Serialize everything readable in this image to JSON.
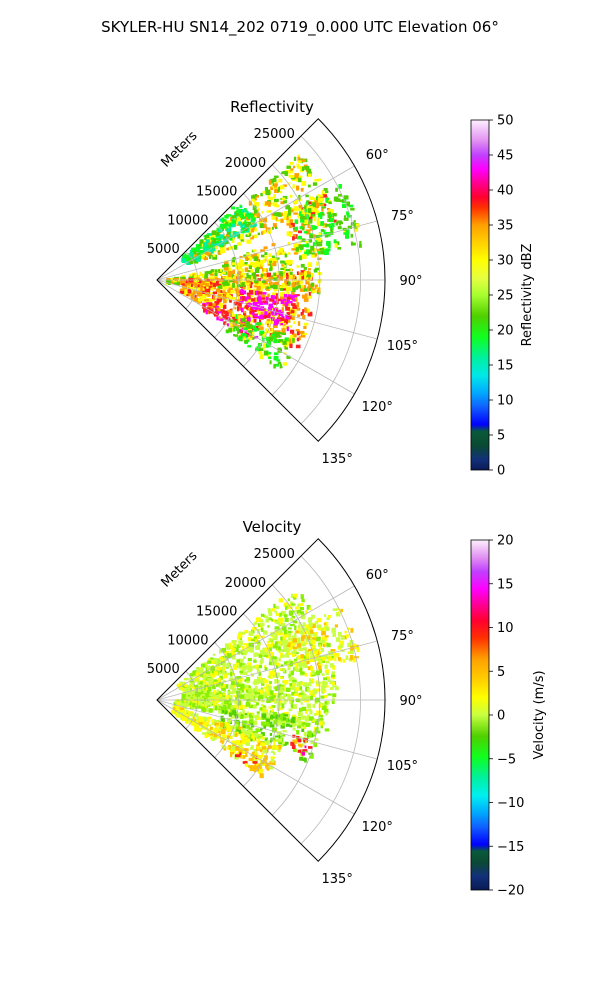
{
  "figure": {
    "title": "SKYLER-HU  SN14_202  0719_0.000 UTC Elevation 06°"
  },
  "chart_data": [
    {
      "type": "heatmap",
      "title": "Reflectivity",
      "range_label": "Meters",
      "range_ticks": [
        5000,
        10000,
        15000,
        20000,
        25000
      ],
      "range_tick_labels": [
        "5000",
        "10000",
        "15000",
        "20000",
        "25000"
      ],
      "range_max": 28000,
      "azimuth_range_deg": [
        45,
        135
      ],
      "azimuth_ticks": [
        60,
        75,
        90,
        105,
        120,
        135
      ],
      "azimuth_tick_labels": [
        "60°",
        "75°",
        "90°",
        "105°",
        "120°",
        "135°"
      ],
      "colorbar": {
        "label": "Reflectivity dBZ",
        "min": 0,
        "max": 50,
        "ticks": [
          0,
          5,
          10,
          15,
          20,
          25,
          30,
          35,
          40,
          45,
          50
        ],
        "tick_labels": [
          "0",
          "5",
          "10",
          "15",
          "20",
          "25",
          "30",
          "35",
          "40",
          "45",
          "50"
        ]
      },
      "echo_regions": [
        {
          "az": [
            48,
            66
          ],
          "r": [
            5000,
            23500
          ],
          "core_value": 26,
          "level": 4
        },
        {
          "az": [
            62,
            72
          ],
          "r": [
            17000,
            23000
          ],
          "core_value": 34,
          "level": 5
        },
        {
          "az": [
            78,
            96
          ],
          "r": [
            1000,
            9000
          ],
          "core_value": 24,
          "level": 4
        },
        {
          "az": [
            86,
            116
          ],
          "r": [
            3000,
            19000
          ],
          "core_value": 30,
          "level": 5
        },
        {
          "az": [
            96,
            110
          ],
          "r": [
            10000,
            17000
          ],
          "core_value": 42,
          "level": 7
        },
        {
          "az": [
            112,
            122
          ],
          "r": [
            6000,
            14000
          ],
          "core_value": 38,
          "level": 6
        },
        {
          "az": [
            112,
            126
          ],
          "r": [
            10000,
            18500
          ],
          "core_value": 20,
          "level": 3
        },
        {
          "az": [
            72,
            94
          ],
          "r": [
            8000,
            20000
          ],
          "core_value": 22,
          "level": 4
        },
        {
          "az": [
            62,
            80
          ],
          "r": [
            18000,
            25500
          ],
          "core_value": 21,
          "level": 3
        },
        {
          "az": [
            45,
            60
          ],
          "r": [
            4000,
            14000
          ],
          "core_value": 14,
          "level": 2
        }
      ]
    },
    {
      "type": "heatmap",
      "title": "Velocity",
      "range_label": "Meters",
      "range_ticks": [
        5000,
        10000,
        15000,
        20000,
        25000
      ],
      "range_tick_labels": [
        "5000",
        "10000",
        "15000",
        "20000",
        "25000"
      ],
      "range_max": 28000,
      "azimuth_range_deg": [
        45,
        135
      ],
      "azimuth_ticks": [
        60,
        75,
        90,
        105,
        120,
        135
      ],
      "azimuth_tick_labels": [
        "60°",
        "75°",
        "90°",
        "105°",
        "120°",
        "135°"
      ],
      "colorbar": {
        "label": "Velocity (m/s)",
        "min": -20,
        "max": 20,
        "ticks": [
          -20,
          -15,
          -10,
          -5,
          0,
          5,
          10,
          15,
          20
        ],
        "tick_labels": [
          "−20",
          "−15",
          "−10",
          "−5",
          "0",
          "5",
          "10",
          "15",
          "20"
        ]
      },
      "echo_regions": [
        {
          "az": [
            50,
            90
          ],
          "r": [
            3000,
            22000
          ],
          "core_value": -3,
          "level": 2
        },
        {
          "az": [
            62,
            78
          ],
          "r": [
            17000,
            25500
          ],
          "core_value": 2,
          "level": 3
        },
        {
          "az": [
            82,
            100
          ],
          "r": [
            2000,
            21000
          ],
          "core_value": -2,
          "level": 2
        },
        {
          "az": [
            96,
            112
          ],
          "r": [
            8000,
            20000
          ],
          "core_value": -5,
          "level": 1
        },
        {
          "az": [
            108,
            126
          ],
          "r": [
            2000,
            16000
          ],
          "core_value": 3,
          "level": 3
        },
        {
          "az": [
            118,
            126
          ],
          "r": [
            11000,
            16000
          ],
          "core_value": 9,
          "level": 4
        },
        {
          "az": [
            104,
            110
          ],
          "r": [
            17000,
            19500
          ],
          "core_value": 14,
          "level": 5
        }
      ]
    }
  ]
}
